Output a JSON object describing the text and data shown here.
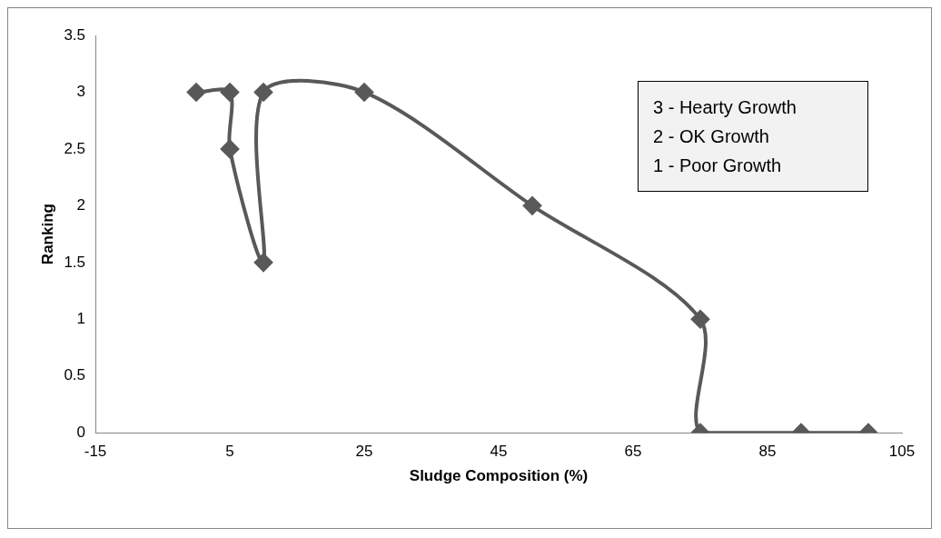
{
  "chart_data": {
    "type": "line",
    "xlabel": "Sludge Composition (%)",
    "ylabel": "Ranking",
    "x": [
      0,
      5,
      5,
      10,
      10,
      25,
      50,
      75,
      75,
      90,
      100
    ],
    "values": [
      3,
      3,
      2.5,
      1.5,
      3,
      3,
      2,
      1,
      0,
      0,
      0
    ],
    "color": "#595959",
    "marker": "diamond",
    "line_style": "solid",
    "grid": false,
    "legend": false,
    "xlim": [
      -15,
      105
    ],
    "xticks": [
      -15,
      5,
      25,
      45,
      65,
      85,
      105
    ],
    "ylim": [
      0,
      3.5
    ],
    "yticks": [
      0,
      0.5,
      1,
      1.5,
      2,
      2.5,
      3,
      3.5
    ],
    "annotations": [
      "3 - Hearty Growth",
      "2 - OK Growth",
      "1 - Poor Growth"
    ]
  }
}
